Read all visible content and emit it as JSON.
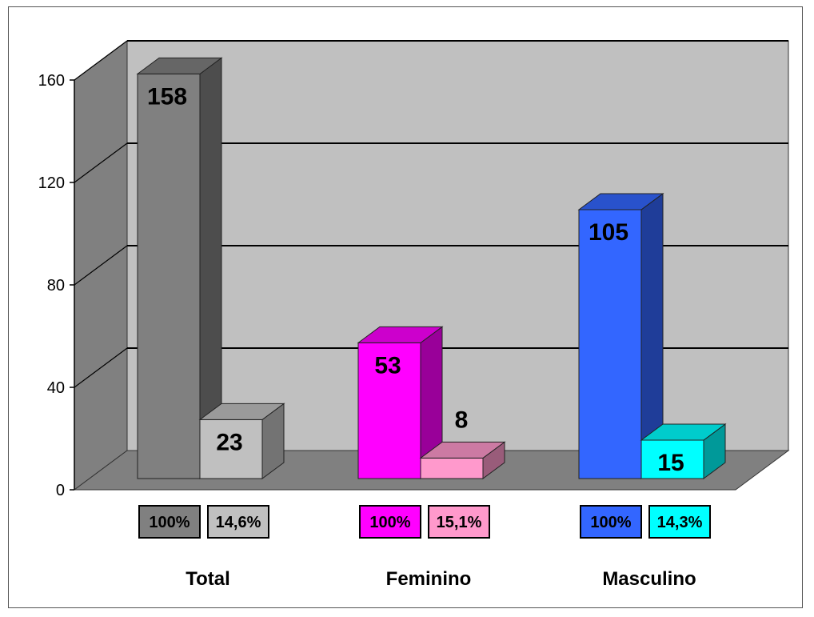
{
  "chart_data": {
    "type": "bar",
    "title": "",
    "xlabel": "",
    "ylabel": "",
    "ylim": [
      0,
      160
    ],
    "yticks": [
      0,
      40,
      80,
      120,
      160
    ],
    "grid": true,
    "legend": "none",
    "categories": [
      "Total",
      "Feminino",
      "Masculino"
    ],
    "series": [
      {
        "values": [
          158,
          53,
          105
        ],
        "percent_labels": [
          "100%",
          "100%",
          "100%"
        ],
        "colors": [
          "#808080",
          "#ff00ff",
          "#3366ff"
        ]
      },
      {
        "values": [
          23,
          8,
          15
        ],
        "percent_labels": [
          "14,6%",
          "15,1%",
          "14,3%"
        ],
        "colors": [
          "#c0c0c0",
          "#ff99cc",
          "#00ffff"
        ]
      }
    ]
  }
}
